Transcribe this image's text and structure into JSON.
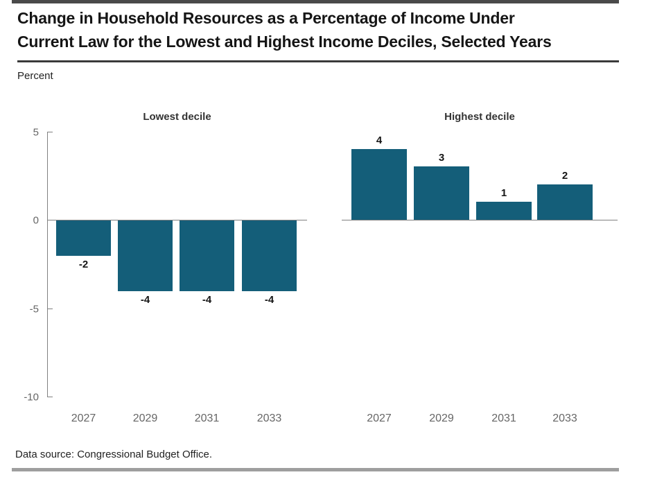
{
  "page": {
    "title_line1": "Change in Household Resources as a Percentage of Income Under",
    "title_line2": "Current Law for the Lowest and Highest Income Deciles, Selected Years",
    "unit_label": "Percent",
    "source_note": "Data source: Congressional Budget Office."
  },
  "colors": {
    "bar": "#145e79",
    "axis": "#808080",
    "tick_text": "#666666",
    "value_text": "#151515",
    "rule_dark": "#3a3a3a",
    "rule_light": "#9e9e9e",
    "top_strip": "#4a4a4a"
  },
  "chart_data": {
    "type": "bar",
    "title": "Change in Household Resources as a Percentage of Income Under Current Law for the Lowest and Highest Income Deciles, Selected Years",
    "ylabel": "Percent",
    "ylim": [
      -10,
      5
    ],
    "yticks": [
      5,
      0,
      -5,
      -10
    ],
    "categories": [
      "2027",
      "2029",
      "2031",
      "2033"
    ],
    "series": [
      {
        "name": "Lowest decile",
        "values": [
          -2,
          -4,
          -4,
          -4
        ]
      },
      {
        "name": "Highest decile",
        "values": [
          4,
          3,
          1,
          2
        ]
      }
    ],
    "grid": false,
    "legend": "none",
    "data_labels": true,
    "source": "Congressional Budget Office"
  }
}
